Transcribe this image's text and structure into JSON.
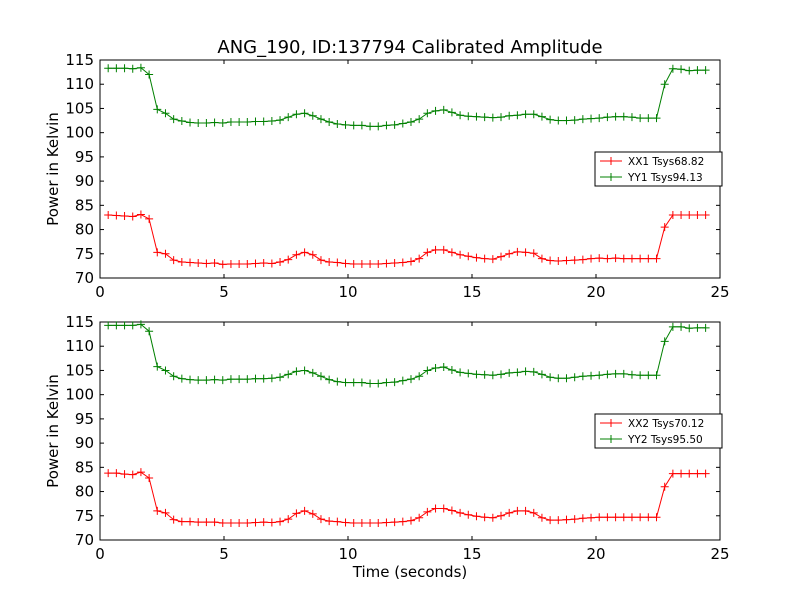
{
  "chart_data": [
    {
      "type": "line",
      "title": "ANG_190, ID:137794 Calibrated Amplitude",
      "xlabel": "",
      "ylabel": "Power in Kelvin",
      "xlim": [
        0,
        25
      ],
      "ylim": [
        70,
        115
      ],
      "xticks": [
        "0",
        "5",
        "10",
        "15",
        "20",
        "25"
      ],
      "yticks": [
        "70",
        "75",
        "80",
        "85",
        "90",
        "95",
        "100",
        "105",
        "110",
        "115"
      ],
      "legend_position": "center-right",
      "marker": "+",
      "grid": false,
      "x": [
        0.33,
        0.66,
        0.99,
        1.32,
        1.65,
        1.98,
        2.31,
        2.64,
        2.97,
        3.3,
        3.63,
        3.96,
        4.29,
        4.62,
        4.95,
        5.28,
        5.61,
        5.94,
        6.27,
        6.6,
        6.93,
        7.26,
        7.59,
        7.92,
        8.25,
        8.58,
        8.91,
        9.24,
        9.57,
        9.9,
        10.23,
        10.56,
        10.89,
        11.22,
        11.55,
        11.88,
        12.21,
        12.54,
        12.87,
        13.2,
        13.53,
        13.86,
        14.19,
        14.52,
        14.85,
        15.18,
        15.51,
        15.84,
        16.17,
        16.5,
        16.83,
        17.16,
        17.49,
        17.82,
        18.15,
        18.48,
        18.81,
        19.14,
        19.47,
        19.8,
        20.13,
        20.46,
        20.79,
        21.12,
        21.45,
        21.78,
        22.11,
        22.44,
        22.77,
        23.1,
        23.43,
        23.76,
        24.09,
        24.42
      ],
      "series": [
        {
          "name": "XX1 Tsys68.82",
          "color": "#ff0000",
          "values": [
            83.0,
            82.9,
            82.8,
            82.7,
            83.1,
            82.2,
            75.3,
            75.0,
            73.7,
            73.3,
            73.2,
            73.1,
            73.0,
            73.1,
            72.8,
            72.9,
            72.9,
            72.9,
            73.0,
            73.1,
            73.0,
            73.3,
            73.8,
            74.8,
            75.3,
            74.8,
            73.7,
            73.3,
            73.2,
            73.0,
            72.9,
            72.9,
            72.9,
            72.9,
            73.0,
            73.1,
            73.2,
            73.4,
            74.0,
            75.3,
            75.8,
            75.8,
            75.3,
            74.8,
            74.5,
            74.2,
            74.0,
            73.9,
            74.4,
            75.0,
            75.4,
            75.3,
            75.1,
            74.0,
            73.6,
            73.5,
            73.6,
            73.7,
            73.8,
            74.0,
            74.1,
            74.0,
            74.1,
            74.0,
            74.0,
            74.0,
            74.0,
            74.0,
            80.5,
            83.0,
            83.0,
            83.0,
            83.0,
            83.0
          ]
        },
        {
          "name": "YY1 Tsys94.13",
          "color": "#008000",
          "values": [
            113.3,
            113.3,
            113.3,
            113.2,
            113.4,
            112.0,
            104.8,
            104.0,
            102.8,
            102.4,
            102.1,
            102.0,
            102.0,
            102.1,
            102.0,
            102.2,
            102.2,
            102.2,
            102.3,
            102.3,
            102.4,
            102.6,
            103.2,
            103.8,
            104.0,
            103.5,
            102.8,
            102.2,
            101.8,
            101.6,
            101.5,
            101.5,
            101.3,
            101.3,
            101.5,
            101.6,
            101.9,
            102.2,
            102.8,
            104.0,
            104.5,
            104.7,
            104.2,
            103.6,
            103.4,
            103.3,
            103.2,
            103.1,
            103.2,
            103.5,
            103.6,
            103.8,
            103.8,
            103.3,
            102.7,
            102.5,
            102.5,
            102.6,
            102.8,
            102.9,
            103.0,
            103.2,
            103.3,
            103.3,
            103.2,
            103.0,
            103.0,
            103.0,
            110.0,
            113.2,
            113.1,
            112.8,
            112.9,
            112.9
          ]
        }
      ]
    },
    {
      "type": "line",
      "title": "",
      "xlabel": "Time (seconds)",
      "ylabel": "Power in Kelvin",
      "xlim": [
        0,
        25
      ],
      "ylim": [
        70,
        115
      ],
      "xticks": [
        "0",
        "5",
        "10",
        "15",
        "20",
        "25"
      ],
      "yticks": [
        "70",
        "75",
        "80",
        "85",
        "90",
        "95",
        "100",
        "105",
        "110",
        "115"
      ],
      "legend_position": "center-right",
      "marker": "+",
      "grid": false,
      "x": [
        0.33,
        0.66,
        0.99,
        1.32,
        1.65,
        1.98,
        2.31,
        2.64,
        2.97,
        3.3,
        3.63,
        3.96,
        4.29,
        4.62,
        4.95,
        5.28,
        5.61,
        5.94,
        6.27,
        6.6,
        6.93,
        7.26,
        7.59,
        7.92,
        8.25,
        8.58,
        8.91,
        9.24,
        9.57,
        9.9,
        10.23,
        10.56,
        10.89,
        11.22,
        11.55,
        11.88,
        12.21,
        12.54,
        12.87,
        13.2,
        13.53,
        13.86,
        14.19,
        14.52,
        14.85,
        15.18,
        15.51,
        15.84,
        16.17,
        16.5,
        16.83,
        17.16,
        17.49,
        17.82,
        18.15,
        18.48,
        18.81,
        19.14,
        19.47,
        19.8,
        20.13,
        20.46,
        20.79,
        21.12,
        21.45,
        21.78,
        22.11,
        22.44,
        22.77,
        23.1,
        23.43,
        23.76,
        24.09,
        24.42
      ],
      "series": [
        {
          "name": "XX2 Tsys70.12",
          "color": "#ff0000",
          "values": [
            83.8,
            83.8,
            83.6,
            83.5,
            84.0,
            82.8,
            76.0,
            75.6,
            74.2,
            73.8,
            73.8,
            73.7,
            73.7,
            73.7,
            73.5,
            73.5,
            73.5,
            73.5,
            73.6,
            73.7,
            73.6,
            73.8,
            74.3,
            75.5,
            76.0,
            75.4,
            74.3,
            73.9,
            73.8,
            73.6,
            73.5,
            73.5,
            73.5,
            73.5,
            73.6,
            73.7,
            73.8,
            74.0,
            74.6,
            75.8,
            76.5,
            76.5,
            76.1,
            75.6,
            75.2,
            74.9,
            74.7,
            74.6,
            75.0,
            75.6,
            76.0,
            76.0,
            75.6,
            74.6,
            74.1,
            74.1,
            74.2,
            74.3,
            74.5,
            74.6,
            74.7,
            74.7,
            74.7,
            74.7,
            74.7,
            74.7,
            74.7,
            74.7,
            81.0,
            83.7,
            83.7,
            83.7,
            83.7,
            83.7
          ]
        },
        {
          "name": "YY2 Tsys95.50",
          "color": "#008000",
          "values": [
            114.3,
            114.3,
            114.3,
            114.3,
            114.5,
            113.1,
            105.8,
            105.0,
            103.8,
            103.3,
            103.1,
            103.0,
            103.0,
            103.1,
            103.0,
            103.2,
            103.2,
            103.2,
            103.3,
            103.3,
            103.4,
            103.6,
            104.2,
            104.8,
            105.0,
            104.5,
            103.8,
            103.1,
            102.7,
            102.5,
            102.5,
            102.5,
            102.3,
            102.3,
            102.5,
            102.6,
            102.9,
            103.2,
            103.8,
            105.0,
            105.5,
            105.7,
            105.1,
            104.6,
            104.4,
            104.2,
            104.1,
            104.0,
            104.2,
            104.5,
            104.6,
            104.8,
            104.7,
            104.2,
            103.6,
            103.4,
            103.4,
            103.6,
            103.8,
            103.9,
            104.0,
            104.2,
            104.3,
            104.3,
            104.1,
            104.0,
            104.0,
            104.0,
            111.0,
            114.0,
            114.0,
            113.7,
            113.8,
            113.8
          ]
        }
      ]
    }
  ]
}
